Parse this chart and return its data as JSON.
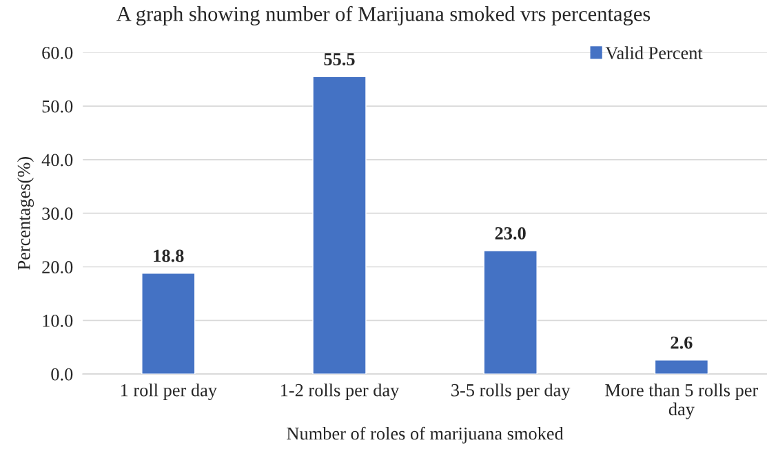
{
  "chart_data": {
    "type": "bar",
    "title": "A graph showing number of Marijuana smoked vrs percentages",
    "xlabel": "Number of roles of marijuana smoked",
    "ylabel": "Percentages(%)",
    "categories": [
      "1 roll per day",
      "1-2 rolls per day",
      "3-5 rolls per day",
      "More than 5 rolls per day"
    ],
    "series": [
      {
        "name": "Valid Percent",
        "color": "#4472c4",
        "values": [
          18.8,
          55.5,
          23.0,
          2.6
        ]
      }
    ],
    "value_labels": [
      "18.8",
      "55.5",
      "23.0",
      "2.6"
    ],
    "ylim": [
      0,
      60
    ],
    "yticks": [
      {
        "value": 0,
        "label": "0.0"
      },
      {
        "value": 10,
        "label": "10.0"
      },
      {
        "value": 20,
        "label": "20.0"
      },
      {
        "value": 30,
        "label": "30.0"
      },
      {
        "value": 40,
        "label": "40.0"
      },
      {
        "value": 50,
        "label": "50.0"
      },
      {
        "value": 60,
        "label": "60.0"
      }
    ],
    "grid": "y",
    "legend": "top right"
  }
}
